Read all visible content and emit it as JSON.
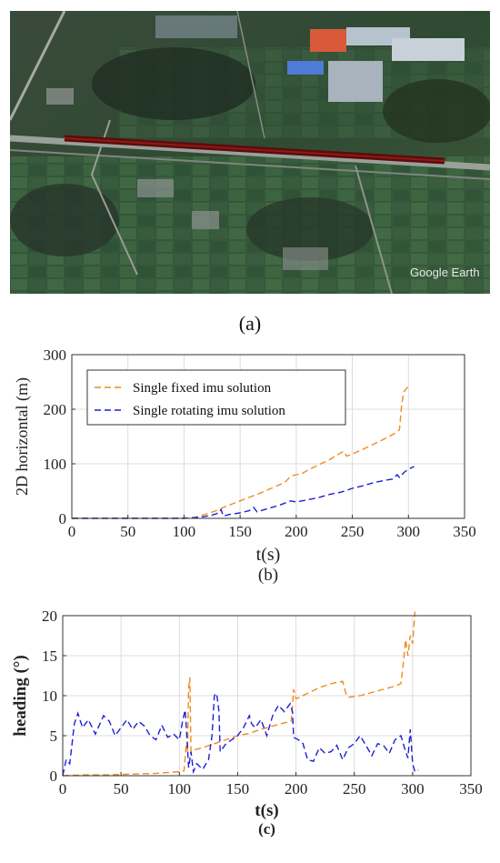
{
  "figure": {
    "panel_a": {
      "caption": "(a)",
      "watermark": "Google Earth"
    },
    "colors": {
      "fixed": "#f28a1e",
      "rotating": "#1f1fd6",
      "track": "#5a0d0d"
    }
  },
  "chart_data": [
    {
      "type": "line",
      "caption": "(b)",
      "xlabel": "t(s)",
      "ylabel": "2D horizontal (m)",
      "xlim": [
        0,
        350
      ],
      "ylim": [
        0,
        300
      ],
      "xticks": [
        0,
        50,
        100,
        150,
        200,
        250,
        300,
        350
      ],
      "yticks": [
        0,
        100,
        200,
        300
      ],
      "grid": true,
      "legend_position": "top-left",
      "series": [
        {
          "name": "Single fixed imu solution",
          "color": "#f28a1e",
          "style": "dashed",
          "points": [
            [
              0,
              0
            ],
            [
              50,
              0
            ],
            [
              100,
              0
            ],
            [
              110,
              2
            ],
            [
              120,
              8
            ],
            [
              130,
              15
            ],
            [
              135,
              20
            ],
            [
              140,
              24
            ],
            [
              150,
              32
            ],
            [
              160,
              40
            ],
            [
              170,
              48
            ],
            [
              180,
              57
            ],
            [
              190,
              66
            ],
            [
              195,
              77
            ],
            [
              200,
              80
            ],
            [
              205,
              82
            ],
            [
              210,
              88
            ],
            [
              220,
              98
            ],
            [
              230,
              108
            ],
            [
              238,
              118
            ],
            [
              242,
              123
            ],
            [
              245,
              114
            ],
            [
              250,
              118
            ],
            [
              260,
              127
            ],
            [
              270,
              137
            ],
            [
              280,
              147
            ],
            [
              288,
              156
            ],
            [
              292,
              162
            ],
            [
              294,
              210
            ],
            [
              296,
              232
            ],
            [
              299,
              240
            ],
            [
              301,
              246
            ]
          ]
        },
        {
          "name": "Single rotating imu solution",
          "color": "#1f1fd6",
          "style": "dashed",
          "points": [
            [
              0,
              0
            ],
            [
              50,
              0
            ],
            [
              100,
              0
            ],
            [
              115,
              2
            ],
            [
              125,
              6
            ],
            [
              131,
              10
            ],
            [
              133,
              16
            ],
            [
              135,
              4
            ],
            [
              140,
              7
            ],
            [
              150,
              10
            ],
            [
              158,
              14
            ],
            [
              162,
              20
            ],
            [
              165,
              12
            ],
            [
              175,
              18
            ],
            [
              185,
              24
            ],
            [
              195,
              32
            ],
            [
              200,
              30
            ],
            [
              210,
              34
            ],
            [
              220,
              38
            ],
            [
              230,
              44
            ],
            [
              240,
              48
            ],
            [
              250,
              55
            ],
            [
              260,
              60
            ],
            [
              270,
              66
            ],
            [
              280,
              70
            ],
            [
              286,
              72
            ],
            [
              290,
              80
            ],
            [
              292,
              75
            ],
            [
              296,
              84
            ],
            [
              300,
              90
            ],
            [
              305,
              95
            ]
          ]
        }
      ]
    },
    {
      "type": "line",
      "caption": "(c)",
      "xlabel": "t(s)",
      "ylabel": "heading (°)",
      "xlim": [
        0,
        350
      ],
      "ylim": [
        0,
        20
      ],
      "xticks": [
        0,
        50,
        100,
        150,
        200,
        250,
        300,
        350
      ],
      "yticks": [
        0,
        5,
        10,
        15,
        20
      ],
      "grid": true,
      "series": [
        {
          "color": "#f28a1e",
          "style": "dashed",
          "points": [
            [
              0,
              0
            ],
            [
              20,
              0.1
            ],
            [
              40,
              0.1
            ],
            [
              60,
              0.2
            ],
            [
              80,
              0.3
            ],
            [
              100,
              0.5
            ],
            [
              104,
              0.6
            ],
            [
              106,
              4
            ],
            [
              107,
              3
            ],
            [
              108,
              11
            ],
            [
              109,
              12.3
            ],
            [
              110,
              3
            ],
            [
              112,
              3.2
            ],
            [
              120,
              3.5
            ],
            [
              130,
              4
            ],
            [
              140,
              4.5
            ],
            [
              150,
              5
            ],
            [
              160,
              5.3
            ],
            [
              170,
              5.8
            ],
            [
              180,
              6.2
            ],
            [
              190,
              6.6
            ],
            [
              196,
              6.8
            ],
            [
              198,
              10.8
            ],
            [
              200,
              9.6
            ],
            [
              210,
              10.3
            ],
            [
              220,
              11
            ],
            [
              230,
              11.5
            ],
            [
              240,
              11.8
            ],
            [
              243,
              10.2
            ],
            [
              245,
              9.8
            ],
            [
              255,
              10
            ],
            [
              265,
              10.4
            ],
            [
              275,
              10.8
            ],
            [
              285,
              11.2
            ],
            [
              290,
              11.5
            ],
            [
              292,
              14
            ],
            [
              294,
              17
            ],
            [
              296,
              15
            ],
            [
              298,
              17.5
            ],
            [
              300,
              16.5
            ],
            [
              302,
              20.5
            ]
          ]
        },
        {
          "color": "#1f1fd6",
          "style": "dashed",
          "points": [
            [
              0,
              0
            ],
            [
              3,
              2
            ],
            [
              6,
              1.5
            ],
            [
              10,
              6.5
            ],
            [
              13,
              7.8
            ],
            [
              17,
              6
            ],
            [
              22,
              7
            ],
            [
              28,
              5.2
            ],
            [
              35,
              7.5
            ],
            [
              40,
              6.8
            ],
            [
              45,
              5
            ],
            [
              50,
              6
            ],
            [
              55,
              7
            ],
            [
              60,
              5.8
            ],
            [
              65,
              6.8
            ],
            [
              70,
              6.2
            ],
            [
              75,
              5
            ],
            [
              80,
              4.5
            ],
            [
              85,
              6.3
            ],
            [
              90,
              4.8
            ],
            [
              95,
              5.2
            ],
            [
              100,
              4.5
            ],
            [
              103,
              7
            ],
            [
              105,
              8.2
            ],
            [
              106,
              6
            ],
            [
              108,
              1
            ],
            [
              110,
              3
            ],
            [
              112,
              0.5
            ],
            [
              115,
              1.5
            ],
            [
              120,
              0.8
            ],
            [
              125,
              2
            ],
            [
              128,
              5
            ],
            [
              130,
              10
            ],
            [
              132,
              10.3
            ],
            [
              134,
              8
            ],
            [
              135,
              3
            ],
            [
              140,
              4
            ],
            [
              145,
              4.5
            ],
            [
              150,
              5
            ],
            [
              155,
              6
            ],
            [
              160,
              7.5
            ],
            [
              162,
              6.5
            ],
            [
              165,
              6
            ],
            [
              170,
              7
            ],
            [
              175,
              5
            ],
            [
              180,
              7.5
            ],
            [
              185,
              8.8
            ],
            [
              190,
              8
            ],
            [
              195,
              9
            ],
            [
              197,
              8
            ],
            [
              198,
              4.8
            ],
            [
              202,
              4.5
            ],
            [
              206,
              4
            ],
            [
              210,
              2
            ],
            [
              215,
              1.8
            ],
            [
              220,
              3.5
            ],
            [
              225,
              2.8
            ],
            [
              230,
              3
            ],
            [
              235,
              3.8
            ],
            [
              240,
              2
            ],
            [
              245,
              3.5
            ],
            [
              250,
              4
            ],
            [
              255,
              5
            ],
            [
              260,
              3.8
            ],
            [
              265,
              2.5
            ],
            [
              270,
              4
            ],
            [
              275,
              3.8
            ],
            [
              280,
              2.8
            ],
            [
              285,
              4.5
            ],
            [
              290,
              5
            ],
            [
              293,
              3.5
            ],
            [
              296,
              2.2
            ],
            [
              298,
              5.8
            ],
            [
              300,
              1.5
            ],
            [
              302,
              0.5
            ],
            [
              305,
              0.7
            ]
          ]
        }
      ]
    }
  ]
}
